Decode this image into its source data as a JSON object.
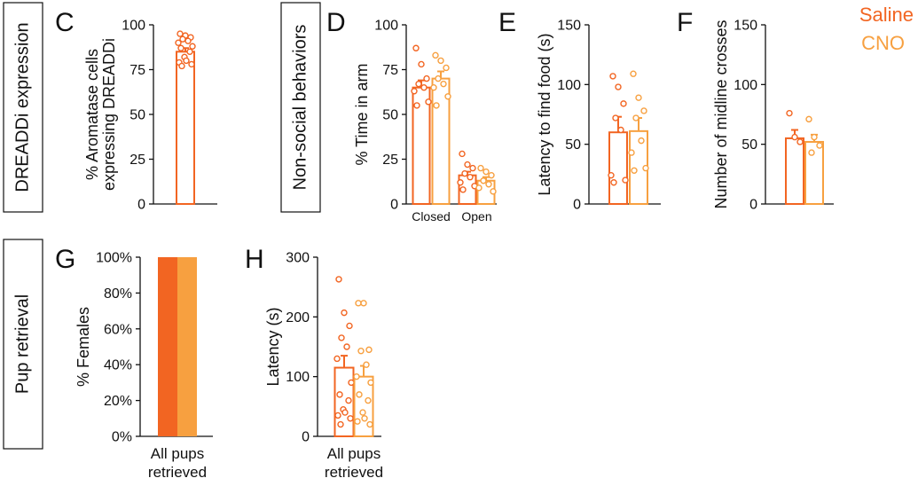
{
  "colors": {
    "saline": "#f26522",
    "cno": "#f7a040"
  },
  "legend": {
    "saline": "Saline",
    "cno": "CNO"
  },
  "section_labels": {
    "dreaddi": "DREADDi expression",
    "nonsocial": "Non-social behaviors",
    "pup": "Pup retrieval"
  },
  "chart_data": [
    {
      "panel": "C",
      "type": "bar",
      "ylabel": [
        "% Aromatase cells",
        "expressing DREADDi"
      ],
      "ylim": [
        0,
        100
      ],
      "yticks": [
        0,
        25,
        50,
        75,
        100
      ],
      "series": [
        {
          "group": "saline",
          "mean": 85,
          "sem": 2,
          "points": [
            95,
            94,
            93,
            92,
            91,
            90,
            88,
            87,
            85,
            82,
            80,
            79,
            78,
            77
          ]
        }
      ]
    },
    {
      "panel": "D",
      "type": "bar",
      "ylabel": [
        "% Time in arm"
      ],
      "categories": [
        "Closed",
        "Open"
      ],
      "ylim": [
        0,
        100
      ],
      "yticks": [
        0,
        25,
        50,
        75,
        100
      ],
      "series": [
        {
          "group": "saline",
          "category": "Closed",
          "mean": 65,
          "sem": 4,
          "points": [
            87,
            78,
            70,
            67,
            65,
            63,
            57,
            55
          ]
        },
        {
          "group": "cno",
          "category": "Closed",
          "mean": 70,
          "sem": 4,
          "points": [
            83,
            80,
            76,
            70,
            67,
            65,
            60,
            55
          ]
        },
        {
          "group": "saline",
          "category": "Open",
          "mean": 16,
          "sem": 2,
          "points": [
            28,
            22,
            20,
            17,
            15,
            12,
            10,
            8
          ]
        },
        {
          "group": "cno",
          "category": "Open",
          "mean": 13,
          "sem": 2,
          "points": [
            20,
            18,
            16,
            13,
            11,
            9,
            7
          ]
        }
      ]
    },
    {
      "panel": "E",
      "type": "bar",
      "ylabel": [
        "Latency to find food (s)"
      ],
      "ylim": [
        0,
        150
      ],
      "yticks": [
        0,
        50,
        100,
        150
      ],
      "series": [
        {
          "group": "saline",
          "mean": 60,
          "sem": 13,
          "points": [
            107,
            98,
            84,
            72,
            62,
            24,
            20,
            18
          ]
        },
        {
          "group": "cno",
          "mean": 61,
          "sem": 11,
          "points": [
            109,
            89,
            78,
            72,
            53,
            43,
            30,
            28
          ]
        }
      ]
    },
    {
      "panel": "F",
      "type": "bar",
      "ylabel": [
        "Number of midline crosses"
      ],
      "ylim": [
        0,
        150
      ],
      "yticks": [
        0,
        50,
        100,
        150
      ],
      "series": [
        {
          "group": "saline",
          "mean": 55,
          "sem": 7,
          "points": [
            76,
            56,
            52
          ]
        },
        {
          "group": "cno",
          "mean": 52,
          "sem": 6,
          "points": [
            71,
            56,
            49,
            43
          ]
        }
      ]
    },
    {
      "panel": "G",
      "type": "bar",
      "ylabel": [
        "% Females"
      ],
      "xlabel": [
        "All pups",
        "retrieved"
      ],
      "ylim": [
        0,
        100
      ],
      "yticks": [
        "0%",
        "20%",
        "40%",
        "60%",
        "80%",
        "100%"
      ],
      "series": [
        {
          "group": "saline",
          "value": 100
        },
        {
          "group": "cno",
          "value": 100
        }
      ]
    },
    {
      "panel": "H",
      "type": "bar",
      "ylabel": [
        "Latency (s)"
      ],
      "xlabel": [
        "All pups",
        "retrieved"
      ],
      "ylim": [
        0,
        300
      ],
      "yticks": [
        0,
        100,
        200,
        300
      ],
      "series": [
        {
          "group": "saline",
          "mean": 115,
          "sem": 20,
          "points": [
            263,
            207,
            185,
            165,
            150,
            130,
            90,
            70,
            60,
            45,
            40,
            35,
            30,
            20
          ]
        },
        {
          "group": "cno",
          "mean": 100,
          "sem": 18,
          "points": [
            223,
            223,
            145,
            143,
            120,
            100,
            90,
            70,
            60,
            40,
            30,
            25,
            20
          ]
        }
      ]
    }
  ]
}
